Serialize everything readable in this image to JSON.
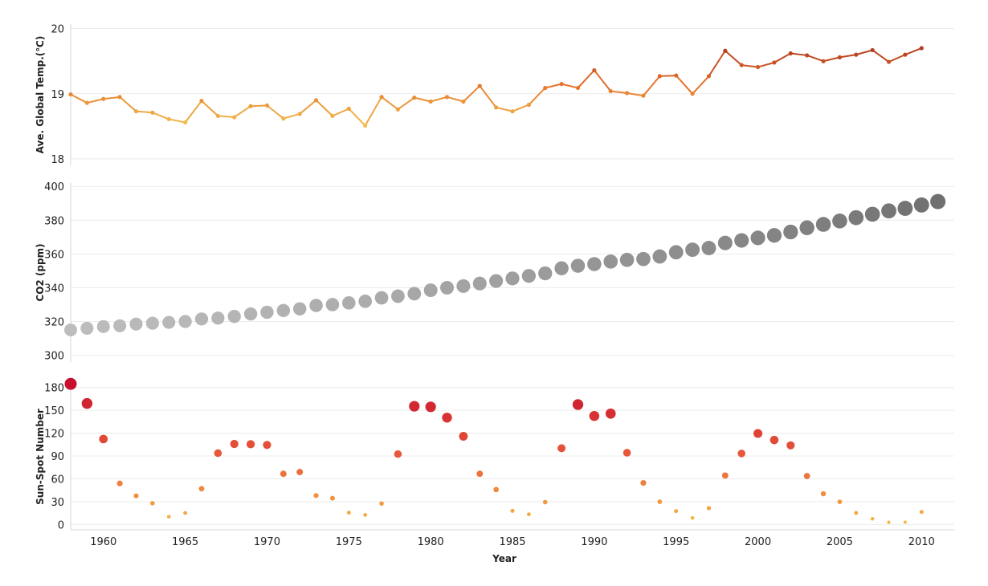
{
  "chart_data": [
    {
      "type": "line",
      "ylabel": "Ave. Global Temp.(℃)",
      "yticks": [
        18,
        19,
        20
      ],
      "ylim": [
        17.9,
        20.07
      ],
      "xlim": [
        1958,
        2012
      ],
      "colors": {
        "low": "#f2c14e",
        "mid": "#e8782e",
        "high": "#b53a1e"
      },
      "x": [
        1958,
        1959,
        1960,
        1961,
        1962,
        1963,
        1964,
        1965,
        1966,
        1967,
        1968,
        1969,
        1970,
        1971,
        1972,
        1973,
        1974,
        1975,
        1976,
        1977,
        1978,
        1979,
        1980,
        1981,
        1982,
        1983,
        1984,
        1985,
        1986,
        1987,
        1988,
        1989,
        1990,
        1991,
        1992,
        1993,
        1994,
        1995,
        1996,
        1997,
        1998,
        1999,
        2000,
        2001,
        2002,
        2003,
        2004,
        2005,
        2006,
        2007,
        2008,
        2009,
        2010
      ],
      "y": [
        18.99,
        18.86,
        18.92,
        18.95,
        18.73,
        18.71,
        18.61,
        18.56,
        18.89,
        18.66,
        18.64,
        18.81,
        18.82,
        18.62,
        18.69,
        18.9,
        18.66,
        18.77,
        18.51,
        18.95,
        18.76,
        18.94,
        18.88,
        18.95,
        18.88,
        19.12,
        18.79,
        18.73,
        18.83,
        19.09,
        19.15,
        19.09,
        19.36,
        19.04,
        19.01,
        18.97,
        19.27,
        19.28,
        19.0,
        19.27,
        19.66,
        19.44,
        19.41,
        19.48,
        19.62,
        19.59,
        19.5,
        19.56,
        19.6,
        19.67,
        19.49,
        19.6,
        19.7
      ]
    },
    {
      "type": "scatter",
      "ylabel": "CO2 (ppm)",
      "yticks": [
        300,
        320,
        340,
        360,
        380,
        400
      ],
      "ylim": [
        296,
        402
      ],
      "xlim": [
        1958,
        2012
      ],
      "colors": {
        "low": "#bdbdbd",
        "high": "#707070"
      },
      "x": [
        1958,
        1959,
        1960,
        1961,
        1962,
        1963,
        1964,
        1965,
        1966,
        1967,
        1968,
        1969,
        1970,
        1971,
        1972,
        1973,
        1974,
        1975,
        1976,
        1977,
        1978,
        1979,
        1980,
        1981,
        1982,
        1983,
        1984,
        1985,
        1986,
        1987,
        1988,
        1989,
        1990,
        1991,
        1992,
        1993,
        1994,
        1995,
        1996,
        1997,
        1998,
        1999,
        2000,
        2001,
        2002,
        2003,
        2004,
        2005,
        2006,
        2007,
        2008,
        2009,
        2010,
        2011
      ],
      "y": [
        315,
        316,
        317,
        317.5,
        318.5,
        319,
        319.5,
        320,
        321.5,
        322,
        323,
        324.5,
        325.5,
        326.5,
        327.5,
        329.5,
        330,
        331,
        332,
        334,
        335,
        336.5,
        338.5,
        340,
        341,
        342.5,
        344,
        345.5,
        347,
        348.5,
        351.5,
        353,
        354,
        355.5,
        356.5,
        357,
        358.5,
        361,
        362.5,
        363.5,
        366.5,
        368,
        369.5,
        371,
        373,
        375.5,
        377.5,
        379.5,
        381.5,
        383.5,
        385.5,
        387,
        389,
        391
      ]
    },
    {
      "type": "scatter",
      "xlabel": "Year",
      "ylabel": "Sun-Spot Number",
      "yticks": [
        0,
        30,
        60,
        90,
        120,
        150,
        180
      ],
      "ylim": [
        -7,
        185
      ],
      "xlim": [
        1958,
        2012
      ],
      "xticks": [
        1960,
        1965,
        1970,
        1975,
        1980,
        1985,
        1990,
        1995,
        2000,
        2005,
        2010
      ],
      "colors": {
        "low": "#f5b942",
        "mid": "#e8583a",
        "high": "#c8102e"
      },
      "x": [
        1958,
        1959,
        1960,
        1961,
        1962,
        1963,
        1964,
        1965,
        1966,
        1967,
        1968,
        1969,
        1970,
        1971,
        1972,
        1973,
        1974,
        1975,
        1976,
        1977,
        1978,
        1979,
        1980,
        1981,
        1982,
        1983,
        1984,
        1985,
        1986,
        1987,
        1988,
        1989,
        1990,
        1991,
        1992,
        1993,
        1994,
        1995,
        1996,
        1997,
        1998,
        1999,
        2000,
        2001,
        2002,
        2003,
        2004,
        2005,
        2006,
        2007,
        2008,
        2009,
        2010
      ],
      "y": [
        184.8,
        159,
        112.3,
        53.9,
        37.6,
        27.9,
        10.2,
        15.1,
        47,
        93.8,
        105.9,
        105.5,
        104.5,
        66.6,
        68.9,
        38,
        34.5,
        15.5,
        12.6,
        27.5,
        92.5,
        155.4,
        154.6,
        140.4,
        115.9,
        66.6,
        45.9,
        17.9,
        13.4,
        29.4,
        100.2,
        157.6,
        142.6,
        145.7,
        94.3,
        54.6,
        29.9,
        17.5,
        8.6,
        21.5,
        64.3,
        93.3,
        119.6,
        111,
        104,
        63.7,
        40.4,
        29.8,
        15.2,
        7.5,
        2.9,
        3.1,
        16.5
      ]
    }
  ]
}
